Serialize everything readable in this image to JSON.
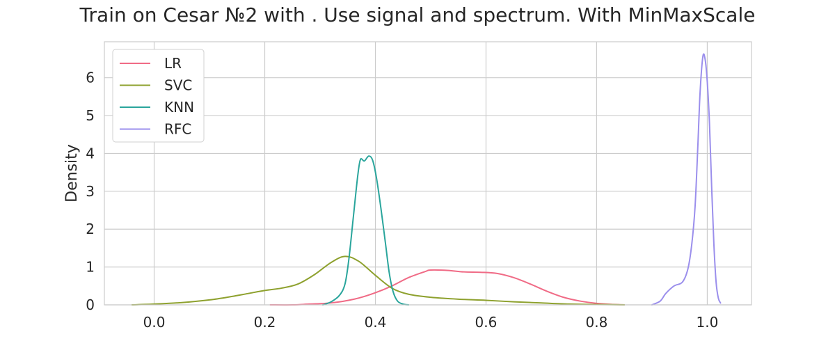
{
  "chart_data": {
    "type": "line",
    "title": "Train on Cesar №2 with . Use signal and spectrum. With MinMaxScale",
    "xlabel": "",
    "ylabel": "Density",
    "xlim": [
      -0.09,
      1.08
    ],
    "ylim": [
      0,
      6.95
    ],
    "x_ticks": [
      0.0,
      0.2,
      0.4,
      0.6,
      0.8,
      1.0
    ],
    "x_tick_labels": [
      "0.0",
      "0.2",
      "0.4",
      "0.6",
      "0.8",
      "1.0"
    ],
    "y_ticks": [
      0,
      1,
      2,
      3,
      4,
      5,
      6
    ],
    "y_tick_labels": [
      "0",
      "1",
      "2",
      "3",
      "4",
      "5",
      "6"
    ],
    "grid": true,
    "legend_position": "top-left",
    "series": [
      {
        "name": "LR",
        "color": "#f06b86",
        "points": [
          [
            0.21,
            0.0
          ],
          [
            0.25,
            0.0
          ],
          [
            0.28,
            0.02
          ],
          [
            0.31,
            0.04
          ],
          [
            0.34,
            0.09
          ],
          [
            0.37,
            0.18
          ],
          [
            0.4,
            0.32
          ],
          [
            0.43,
            0.5
          ],
          [
            0.46,
            0.72
          ],
          [
            0.49,
            0.88
          ],
          [
            0.5,
            0.92
          ],
          [
            0.53,
            0.91
          ],
          [
            0.56,
            0.87
          ],
          [
            0.59,
            0.86
          ],
          [
            0.62,
            0.83
          ],
          [
            0.65,
            0.72
          ],
          [
            0.68,
            0.55
          ],
          [
            0.71,
            0.36
          ],
          [
            0.74,
            0.2
          ],
          [
            0.77,
            0.1
          ],
          [
            0.8,
            0.04
          ],
          [
            0.83,
            0.01
          ],
          [
            0.85,
            0.0
          ]
        ]
      },
      {
        "name": "SVC",
        "color": "#8ea12e",
        "points": [
          [
            -0.04,
            0.0
          ],
          [
            0.0,
            0.02
          ],
          [
            0.05,
            0.06
          ],
          [
            0.1,
            0.13
          ],
          [
            0.14,
            0.22
          ],
          [
            0.17,
            0.3
          ],
          [
            0.2,
            0.38
          ],
          [
            0.23,
            0.44
          ],
          [
            0.26,
            0.55
          ],
          [
            0.29,
            0.8
          ],
          [
            0.32,
            1.12
          ],
          [
            0.345,
            1.28
          ],
          [
            0.37,
            1.15
          ],
          [
            0.4,
            0.78
          ],
          [
            0.43,
            0.44
          ],
          [
            0.46,
            0.28
          ],
          [
            0.5,
            0.2
          ],
          [
            0.55,
            0.15
          ],
          [
            0.6,
            0.12
          ],
          [
            0.65,
            0.08
          ],
          [
            0.7,
            0.05
          ],
          [
            0.75,
            0.02
          ],
          [
            0.8,
            0.01
          ],
          [
            0.85,
            0.0
          ]
        ]
      },
      {
        "name": "KNN",
        "color": "#2aa59c",
        "points": [
          [
            0.305,
            0.0
          ],
          [
            0.32,
            0.08
          ],
          [
            0.335,
            0.25
          ],
          [
            0.345,
            0.55
          ],
          [
            0.352,
            1.2
          ],
          [
            0.36,
            2.3
          ],
          [
            0.368,
            3.4
          ],
          [
            0.373,
            3.84
          ],
          [
            0.38,
            3.8
          ],
          [
            0.388,
            3.93
          ],
          [
            0.395,
            3.82
          ],
          [
            0.402,
            3.35
          ],
          [
            0.41,
            2.55
          ],
          [
            0.418,
            1.65
          ],
          [
            0.425,
            0.85
          ],
          [
            0.432,
            0.35
          ],
          [
            0.44,
            0.1
          ],
          [
            0.45,
            0.02
          ],
          [
            0.46,
            0.0
          ]
        ]
      },
      {
        "name": "RFC",
        "color": "#9b8fec",
        "points": [
          [
            0.9,
            0.0
          ],
          [
            0.915,
            0.1
          ],
          [
            0.925,
            0.3
          ],
          [
            0.94,
            0.5
          ],
          [
            0.955,
            0.6
          ],
          [
            0.965,
            0.95
          ],
          [
            0.972,
            1.6
          ],
          [
            0.978,
            2.6
          ],
          [
            0.983,
            4.2
          ],
          [
            0.987,
            5.6
          ],
          [
            0.992,
            6.55
          ],
          [
            0.996,
            6.5
          ],
          [
            1.0,
            5.9
          ],
          [
            1.004,
            4.8
          ],
          [
            1.008,
            3.1
          ],
          [
            1.012,
            1.6
          ],
          [
            1.016,
            0.6
          ],
          [
            1.02,
            0.18
          ],
          [
            1.024,
            0.05
          ]
        ]
      }
    ]
  }
}
